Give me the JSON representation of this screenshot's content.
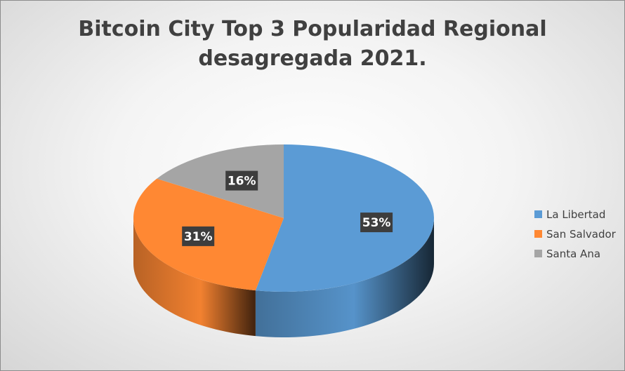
{
  "chart_data": {
    "type": "pie",
    "title_lines": [
      "Bitcoin City Top 3 Popularidad Regional",
      "desagregada 2021."
    ],
    "categories": [
      "La Libertad",
      "San Salvador",
      "Santa Ana"
    ],
    "values": [
      53,
      31,
      16
    ],
    "data_labels": [
      "53%",
      "31%",
      "16%"
    ],
    "colors": [
      "#5b9bd5",
      "#ff8833",
      "#a5a5a5"
    ],
    "legend_position": "right",
    "style": "3d"
  }
}
